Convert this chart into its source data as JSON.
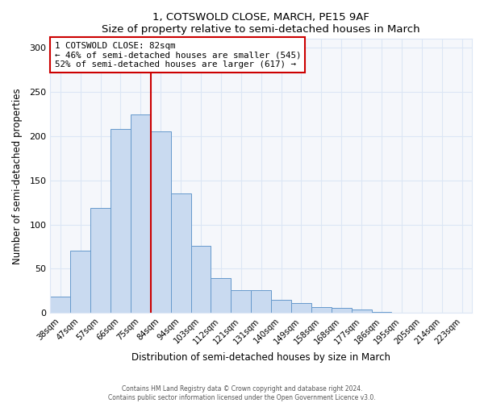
{
  "title": "1, COTSWOLD CLOSE, MARCH, PE15 9AF",
  "subtitle": "Size of property relative to semi-detached houses in March",
  "xlabel": "Distribution of semi-detached houses by size in March",
  "ylabel": "Number of semi-detached properties",
  "bar_labels": [
    "38sqm",
    "47sqm",
    "57sqm",
    "66sqm",
    "75sqm",
    "84sqm",
    "94sqm",
    "103sqm",
    "112sqm",
    "121sqm",
    "131sqm",
    "140sqm",
    "149sqm",
    "158sqm",
    "168sqm",
    "177sqm",
    "186sqm",
    "195sqm",
    "205sqm",
    "214sqm",
    "223sqm"
  ],
  "bar_values": [
    18,
    70,
    119,
    208,
    225,
    205,
    135,
    76,
    39,
    26,
    26,
    15,
    11,
    7,
    6,
    4,
    1,
    0,
    0,
    0,
    0
  ],
  "bar_color": "#c9daf0",
  "bar_edge_color": "#6699cc",
  "vline_color": "#cc0000",
  "vline_x_index": 4.5,
  "annotation_title": "1 COTSWOLD CLOSE: 82sqm",
  "annotation_line1": "← 46% of semi-detached houses are smaller (545)",
  "annotation_line2": "52% of semi-detached houses are larger (617) →",
  "annotation_box_color": "#ffffff",
  "annotation_box_edge": "#cc0000",
  "ylim": [
    0,
    310
  ],
  "yticks": [
    0,
    50,
    100,
    150,
    200,
    250,
    300
  ],
  "footer1": "Contains HM Land Registry data © Crown copyright and database right 2024.",
  "footer2": "Contains public sector information licensed under the Open Government Licence v3.0.",
  "bg_color": "#ffffff",
  "plot_bg_color": "#f5f7fb",
  "grid_color": "#dce6f5"
}
